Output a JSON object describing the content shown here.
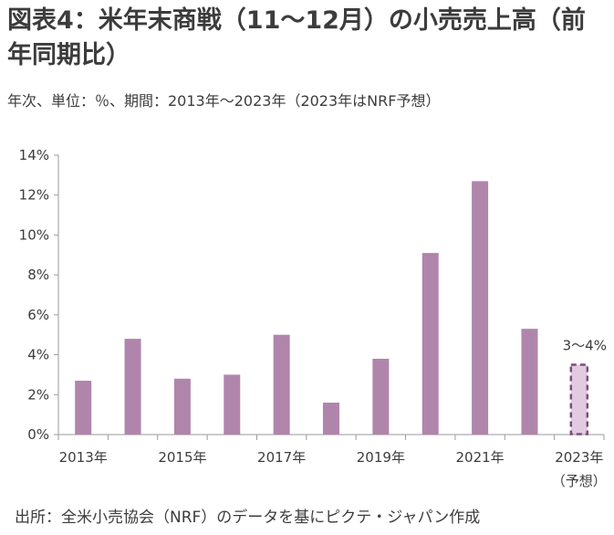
{
  "title": "図表4：米年末商戦（11〜12月）の小売売上高（前年同期比）",
  "subtitle": "年次、単位：％、期間：2013年〜2023年（2023年はNRF予想）",
  "source": "出所：全米小売協会（NRF）のデータを基にピクテ・ジャパン作成",
  "chart_data": {
    "type": "bar",
    "x": [
      2013,
      2014,
      2015,
      2016,
      2017,
      2018,
      2019,
      2020,
      2021,
      2022,
      2023
    ],
    "x_tick_labels": [
      {
        "year": 2013,
        "label": "2013年"
      },
      {
        "year": 2015,
        "label": "2015年"
      },
      {
        "year": 2017,
        "label": "2017年"
      },
      {
        "year": 2019,
        "label": "2019年"
      },
      {
        "year": 2021,
        "label": "2021年"
      },
      {
        "year": 2023,
        "label": "2023年"
      }
    ],
    "x_tick_sublabel": "（予想）",
    "values": [
      2.7,
      4.8,
      2.8,
      3.0,
      5.0,
      1.6,
      3.8,
      9.1,
      12.7,
      5.3,
      3.5
    ],
    "forecast": {
      "year": 2023,
      "range": [
        3,
        4
      ],
      "label": "3〜4%"
    },
    "ylim": [
      0,
      14
    ],
    "yticks": [
      "0%",
      "2%",
      "4%",
      "6%",
      "8%",
      "10%",
      "12%",
      "14%"
    ],
    "ytick_values": [
      0,
      2,
      4,
      6,
      8,
      10,
      12,
      14
    ],
    "colors": {
      "bar": "#b085ac",
      "forecast_fill": "#e2cbe0",
      "forecast_border": "#7e4d7e",
      "axis": "#9a9a9a",
      "text": "#3c3c3c"
    },
    "grid": false
  }
}
